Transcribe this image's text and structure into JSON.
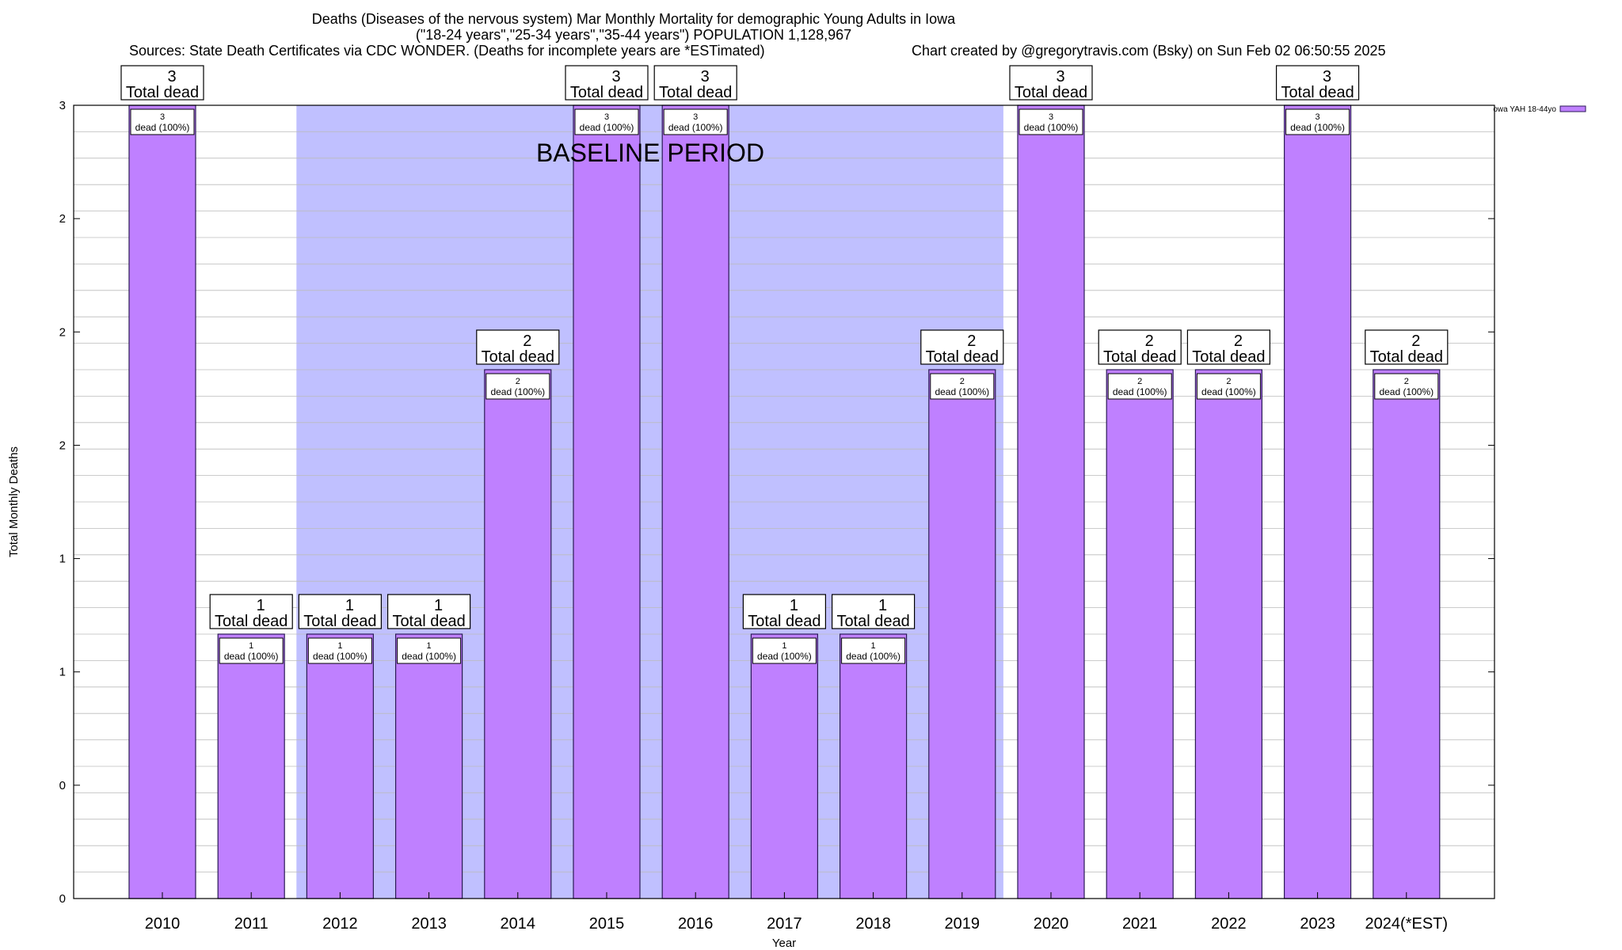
{
  "header": {
    "title_line1": "Deaths (Diseases of the nervous system) Mar Monthly Mortality for demographic Young Adults in Iowa",
    "title_line2": "(\"18-24 years\",\"25-34 years\",\"35-44 years\") POPULATION 1,128,967",
    "sources": "Sources: State Death Certificates via CDC WONDER. (Deaths for incomplete years are *ESTimated)",
    "credit": "Chart created by @gregorytravis.com (Bsky) on Sun Feb 02 06:50:55 2025"
  },
  "chart_data": {
    "type": "bar",
    "categories": [
      "2010",
      "2011",
      "2012",
      "2013",
      "2014",
      "2015",
      "2016",
      "2017",
      "2018",
      "2019",
      "2020",
      "2021",
      "2022",
      "2023",
      "2024(*EST)"
    ],
    "series": [
      {
        "name": "owa YAH 18-44yo",
        "values": [
          3,
          1,
          1,
          1,
          2,
          3,
          3,
          1,
          1,
          2,
          3,
          2,
          2,
          3,
          2
        ]
      }
    ],
    "total_labels": [
      "3",
      "1",
      "1",
      "1",
      "2",
      "3",
      "3",
      "1",
      "1",
      "2",
      "3",
      "2",
      "2",
      "3",
      "2"
    ],
    "total_suffix": "Total dead",
    "bar_labels": [
      "3",
      "1",
      "1",
      "1",
      "2",
      "3",
      "3",
      "1",
      "1",
      "2",
      "3",
      "2",
      "2",
      "3",
      "2"
    ],
    "bar_suffix": "dead (100%)",
    "xlabel": "Year",
    "ylabel": "Total Monthly Deaths",
    "ytick_labels": [
      "0",
      "0",
      "1",
      "1",
      "2",
      "2",
      "2",
      "3"
    ],
    "ylim": [
      0,
      3
    ],
    "baseline": {
      "label": "BASELINE PERIOD",
      "start": "2012",
      "end": "2019"
    },
    "grid": true,
    "legend_position": "top-right",
    "colors": {
      "bar": "#bf80ff",
      "bar_edge": "#2b1a55",
      "baseline_band": "#c0c0ff",
      "legend_swatch": "#bf80ff"
    }
  }
}
